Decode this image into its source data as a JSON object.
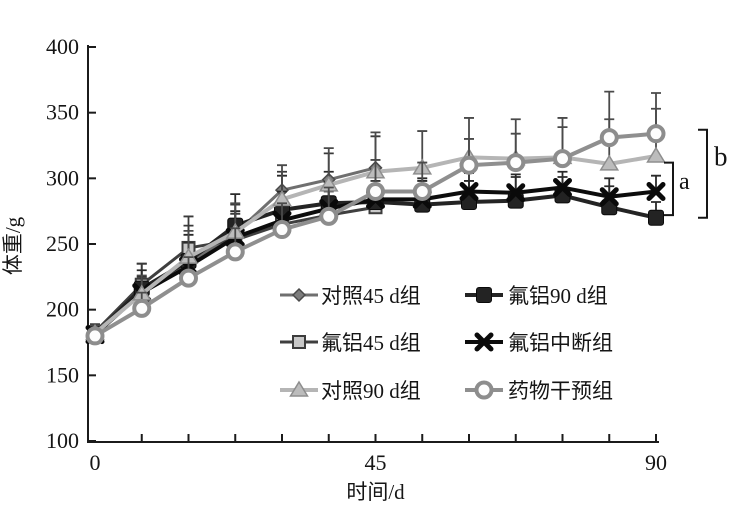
{
  "figure": {
    "background": "#ffffff",
    "text_color": "#151515",
    "axis_color": "#1b1b1b"
  },
  "chart_data": {
    "type": "line",
    "title": "",
    "xlabel": "时间/d",
    "ylabel": "体重/g",
    "xlim": [
      0,
      90
    ],
    "ylim": [
      100,
      400
    ],
    "x_tick_interval": 7.5,
    "y_tick_interval": 50,
    "x_tick_labels": [
      {
        "value": 0,
        "label": "0"
      },
      {
        "value": 45,
        "label": "45"
      },
      {
        "value": 90,
        "label": "90"
      }
    ],
    "y_tick_labels": [
      {
        "value": 100,
        "label": "100"
      },
      {
        "value": 150,
        "label": "150"
      },
      {
        "value": 200,
        "label": "200"
      },
      {
        "value": 250,
        "label": "250"
      },
      {
        "value": 300,
        "label": "300"
      },
      {
        "value": 350,
        "label": "350"
      },
      {
        "value": 400,
        "label": "400"
      }
    ],
    "grid": false,
    "legend_position": "inside-lower-right",
    "x": [
      0,
      7.5,
      15,
      22.5,
      30,
      37.5,
      45,
      52.5,
      60,
      67.5,
      75,
      82.5,
      90
    ],
    "series": [
      {
        "key": "control-45d",
        "name": "对照45 d组",
        "marker": "diamond",
        "line_color": "#6f6f6f",
        "line_width": 3,
        "marker_fill": "#7d7d7d",
        "marker_stroke": "#4a4a4a",
        "err_color": "#3a3a3a",
        "values": [
          182,
          215,
          236,
          258,
          291,
          299,
          308
        ],
        "err_up": [
          6,
          20,
          28,
          22,
          14,
          20,
          24
        ]
      },
      {
        "key": "fa-45d",
        "name": "氟铝45 d组",
        "marker": "square-open",
        "line_color": "#3f3f3f",
        "line_width": 3,
        "marker_fill": "#c8c8c8",
        "marker_stroke": "#3c3c3c",
        "err_color": "#3a3a3a",
        "values": [
          183,
          219,
          247,
          253,
          265,
          272,
          278
        ],
        "err_up": [
          6,
          16,
          24,
          20,
          18,
          18,
          20
        ]
      },
      {
        "key": "control-90d",
        "name": "对照90 d组",
        "marker": "triangle",
        "line_color": "#b5b5b5",
        "line_width": 4,
        "marker_fill": "#bcbcbc",
        "marker_stroke": "#8e8e8e",
        "err_color": "#4a4a4a",
        "values": [
          182,
          212,
          240,
          259,
          284,
          295,
          305,
          308,
          316,
          315,
          316,
          311,
          317
        ],
        "err_up": [
          6,
          14,
          20,
          22,
          26,
          28,
          30,
          28,
          30,
          30,
          30,
          34,
          36
        ]
      },
      {
        "key": "fa-90d",
        "name": "氟铝90 d组",
        "marker": "square-filled",
        "line_color": "#242424",
        "line_width": 4,
        "marker_fill": "#232323",
        "marker_stroke": "#0a0a0a",
        "err_color": "#2a2a2a",
        "values": [
          181,
          216,
          237,
          264,
          276,
          281,
          282,
          280,
          282,
          283,
          287,
          278,
          270
        ],
        "err_up": [
          6,
          14,
          20,
          24,
          26,
          24,
          20,
          18,
          16,
          18,
          14,
          16,
          12
        ]
      },
      {
        "key": "fa-interrupted",
        "name": "氟铝中断组",
        "marker": "x",
        "line_color": "#0c0c0c",
        "line_width": 4,
        "marker_fill": "#0a0a0a",
        "marker_stroke": "#0a0a0a",
        "err_color": "#2a2a2a",
        "values": [
          181,
          213,
          233,
          255,
          268,
          277,
          284,
          284,
          290,
          289,
          293,
          286,
          290
        ],
        "err_up": [
          5,
          12,
          18,
          20,
          22,
          20,
          18,
          16,
          14,
          14,
          12,
          14,
          12
        ]
      },
      {
        "key": "drug-intervention",
        "name": "药物干预组",
        "marker": "circle-open",
        "line_color": "#8f8f8f",
        "line_width": 4,
        "marker_fill": "#fdfdfd",
        "marker_stroke": "#8d8d8d",
        "err_color": "#4a4a4a",
        "values": [
          180,
          201,
          224,
          244,
          261,
          271,
          290,
          290,
          310,
          312,
          315,
          331,
          334
        ],
        "err_up": [
          5,
          12,
          16,
          18,
          20,
          22,
          24,
          22,
          20,
          22,
          24,
          35,
          31
        ]
      }
    ],
    "legend_order": [
      "control-45d",
      "fa-90d",
      "fa-45d",
      "fa-interrupted",
      "control-90d",
      "drug-intervention"
    ],
    "annotations": [
      {
        "label": "a",
        "span_top_g": 312,
        "span_bottom_g": 272,
        "label_g": 298
      },
      {
        "label": "b",
        "span_top_g": 337,
        "span_bottom_g": 270,
        "label_g": 316
      }
    ]
  }
}
